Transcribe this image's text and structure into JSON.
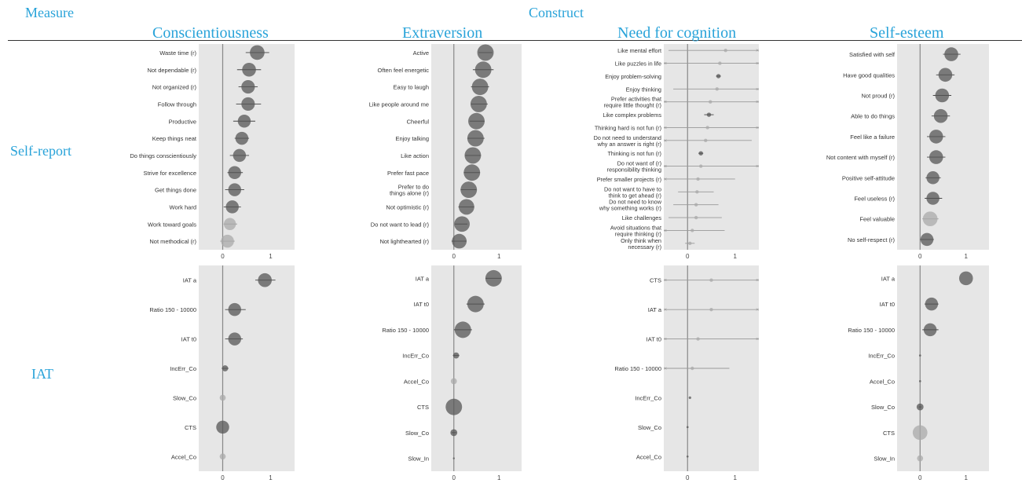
{
  "headers": {
    "measure": "Measure",
    "construct": "Construct",
    "columns": [
      "Conscientiousness",
      "Extraversion",
      "Need for cognition",
      "Self-esteem"
    ],
    "rows": [
      "Self-report",
      "IAT"
    ]
  },
  "chart_data": {
    "type": "scatter",
    "style": "forest-plot with point size and color intensity encoding magnitude, horizontal lines showing intervals",
    "xlim": [
      -0.5,
      1.5
    ],
    "xticks": [
      "0",
      "1"
    ],
    "colors": {
      "panel": "#e6e6e6",
      "zero_line": "#888888",
      "point_dark": "#555555",
      "point_light": "#aaaaaa",
      "interval": "#444444"
    },
    "panels": [
      {
        "construct": "Conscientiousness",
        "measure": "Self-report",
        "items": [
          {
            "label": "Waste time (r)",
            "value": 0.72,
            "lo": 0.48,
            "hi": 0.97,
            "size": 0.85
          },
          {
            "label": "Not dependable (r)",
            "value": 0.55,
            "lo": 0.3,
            "hi": 0.8,
            "size": 0.8
          },
          {
            "label": "Not organized (r)",
            "value": 0.53,
            "lo": 0.33,
            "hi": 0.73,
            "size": 0.78
          },
          {
            "label": "Follow through",
            "value": 0.53,
            "lo": 0.28,
            "hi": 0.8,
            "size": 0.78
          },
          {
            "label": "Productive",
            "value": 0.45,
            "lo": 0.22,
            "hi": 0.68,
            "size": 0.75
          },
          {
            "label": "Keep things neat",
            "value": 0.4,
            "lo": 0.25,
            "hi": 0.55,
            "size": 0.75
          },
          {
            "label": "Do things conscientiously",
            "value": 0.35,
            "lo": 0.15,
            "hi": 0.55,
            "size": 0.75
          },
          {
            "label": "Strive for excellence",
            "value": 0.25,
            "lo": 0.1,
            "hi": 0.42,
            "size": 0.75
          },
          {
            "label": "Get things done",
            "value": 0.25,
            "lo": 0.05,
            "hi": 0.45,
            "size": 0.75
          },
          {
            "label": "Work hard",
            "value": 0.2,
            "lo": 0.02,
            "hi": 0.38,
            "size": 0.75
          },
          {
            "label": "Work toward goals",
            "value": 0.15,
            "lo": 0.02,
            "hi": 0.3,
            "size": 0.7,
            "light": true
          },
          {
            "label": "Not methodical (r)",
            "value": 0.1,
            "lo": -0.05,
            "hi": 0.25,
            "size": 0.75,
            "light": true
          }
        ]
      },
      {
        "construct": "Extraversion",
        "measure": "Self-report",
        "items": [
          {
            "label": "Active",
            "value": 0.7,
            "lo": 0.55,
            "hi": 0.85,
            "size": 0.95
          },
          {
            "label": "Often feel energetic",
            "value": 0.65,
            "lo": 0.42,
            "hi": 0.88,
            "size": 0.95
          },
          {
            "label": "Easy to laugh",
            "value": 0.58,
            "lo": 0.38,
            "hi": 0.78,
            "size": 0.95
          },
          {
            "label": "Like people around me",
            "value": 0.55,
            "lo": 0.38,
            "hi": 0.75,
            "size": 0.95
          },
          {
            "label": "Cheerful",
            "value": 0.5,
            "lo": 0.35,
            "hi": 0.68,
            "size": 0.95
          },
          {
            "label": "Enjoy talking",
            "value": 0.48,
            "lo": 0.3,
            "hi": 0.68,
            "size": 0.95
          },
          {
            "label": "Like action",
            "value": 0.42,
            "lo": 0.25,
            "hi": 0.6,
            "size": 0.95
          },
          {
            "label": "Prefer fast pace",
            "value": 0.4,
            "lo": 0.22,
            "hi": 0.58,
            "size": 0.95
          },
          {
            "label": "Prefer to do things alone (r)",
            "value": 0.33,
            "lo": 0.15,
            "hi": 0.5,
            "size": 0.95
          },
          {
            "label": "Not optimistic (r)",
            "value": 0.28,
            "lo": 0.1,
            "hi": 0.45,
            "size": 0.9
          },
          {
            "label": "Do not want to lead (r)",
            "value": 0.18,
            "lo": 0.02,
            "hi": 0.3,
            "size": 0.9
          },
          {
            "label": "Not lighthearted (r)",
            "value": 0.12,
            "lo": -0.05,
            "hi": 0.28,
            "size": 0.85
          }
        ]
      },
      {
        "construct": "Need for cognition",
        "measure": "Self-report",
        "items": [
          {
            "label": "Like mental effort",
            "value": 0.8,
            "lo": -0.4,
            "hi": 1.5,
            "size": 0.2,
            "light": true
          },
          {
            "label": "Like puzzles in life",
            "value": 0.68,
            "lo": -0.5,
            "hi": 1.5,
            "size": 0.2,
            "light": true
          },
          {
            "label": "Enjoy problem-solving",
            "value": 0.65,
            "lo": 0.6,
            "hi": 0.7,
            "size": 0.25
          },
          {
            "label": "Enjoy thinking",
            "value": 0.62,
            "lo": -0.3,
            "hi": 1.5,
            "size": 0.2,
            "light": true
          },
          {
            "label": "Prefer activities that require little thought (r)",
            "value": 0.48,
            "lo": -0.5,
            "hi": 1.5,
            "size": 0.2,
            "light": true
          },
          {
            "label": "Like complex problems",
            "value": 0.45,
            "lo": 0.35,
            "hi": 0.55,
            "size": 0.25
          },
          {
            "label": "Thinking hard is not fun (r)",
            "value": 0.42,
            "lo": -0.5,
            "hi": 1.5,
            "size": 0.2,
            "light": true
          },
          {
            "label": "Do not need to understand why an answer is right (r)",
            "value": 0.38,
            "lo": -0.5,
            "hi": 1.35,
            "size": 0.2,
            "light": true
          },
          {
            "label": "Thinking is not fun (r)",
            "value": 0.28,
            "lo": 0.23,
            "hi": 0.33,
            "size": 0.25
          },
          {
            "label": "Do not want responsibility of thinking (r)",
            "value": 0.28,
            "lo": -0.5,
            "hi": 1.5,
            "size": 0.2,
            "light": true
          },
          {
            "label": "Prefer smaller projects (r)",
            "value": 0.22,
            "lo": -0.5,
            "hi": 1.0,
            "size": 0.2,
            "light": true
          },
          {
            "label": "Do not want to have to think to get ahead (r)",
            "value": 0.2,
            "lo": -0.2,
            "hi": 0.55,
            "size": 0.2,
            "light": true
          },
          {
            "label": "Do not need to know why something works (r)",
            "value": 0.18,
            "lo": -0.3,
            "hi": 0.65,
            "size": 0.2,
            "light": true
          },
          {
            "label": "Like challenges",
            "value": 0.18,
            "lo": -0.4,
            "hi": 0.72,
            "size": 0.2,
            "light": true
          },
          {
            "label": "Avoid situations that require thinking (r)",
            "value": 0.1,
            "lo": -0.5,
            "hi": 0.78,
            "size": 0.2,
            "light": true
          },
          {
            "label": "Only think when necessary (r)",
            "value": 0.05,
            "lo": -0.05,
            "hi": 0.15,
            "size": 0.2,
            "light": true
          }
        ]
      },
      {
        "construct": "Self-esteem",
        "measure": "Self-report",
        "items": [
          {
            "label": "Satisfied with self",
            "value": 0.68,
            "lo": 0.5,
            "hi": 0.88,
            "size": 0.8
          },
          {
            "label": "Have good qualities",
            "value": 0.55,
            "lo": 0.35,
            "hi": 0.75,
            "size": 0.8
          },
          {
            "label": "Not proud (r)",
            "value": 0.48,
            "lo": 0.28,
            "hi": 0.68,
            "size": 0.8
          },
          {
            "label": "Able to do things",
            "value": 0.45,
            "lo": 0.25,
            "hi": 0.65,
            "size": 0.8
          },
          {
            "label": "Feel like a failure",
            "value": 0.35,
            "lo": 0.15,
            "hi": 0.55,
            "size": 0.8
          },
          {
            "label": "Not content with myself (r)",
            "value": 0.35,
            "lo": 0.15,
            "hi": 0.55,
            "size": 0.8
          },
          {
            "label": "Positive self-attitude",
            "value": 0.28,
            "lo": 0.12,
            "hi": 0.45,
            "size": 0.75
          },
          {
            "label": "Feel useless (r)",
            "value": 0.28,
            "lo": 0.1,
            "hi": 0.48,
            "size": 0.75
          },
          {
            "label": "Feel valuable",
            "value": 0.22,
            "lo": 0.05,
            "hi": 0.4,
            "size": 0.85,
            "light": true
          },
          {
            "label": "No self-respect (r)",
            "value": 0.15,
            "lo": 0.0,
            "hi": 0.3,
            "size": 0.75
          }
        ]
      },
      {
        "construct": "Conscientiousness",
        "measure": "IAT",
        "items": [
          {
            "label": "IAT a",
            "value": 0.88,
            "lo": 0.68,
            "hi": 1.1,
            "size": 0.8
          },
          {
            "label": "Ratio 150 - 10000",
            "value": 0.25,
            "lo": 0.05,
            "hi": 0.48,
            "size": 0.75
          },
          {
            "label": "IAT t0",
            "value": 0.25,
            "lo": 0.05,
            "hi": 0.42,
            "size": 0.75
          },
          {
            "label": "IncErr_Co",
            "value": 0.05,
            "lo": -0.02,
            "hi": 0.12,
            "size": 0.35
          },
          {
            "label": "Slow_Co",
            "value": 0.0,
            "lo": 0.0,
            "hi": 0.0,
            "size": 0.35,
            "light": true
          },
          {
            "label": "CTS",
            "value": 0.0,
            "lo": 0.0,
            "hi": 0.0,
            "size": 0.75
          },
          {
            "label": "Accel_Co",
            "value": 0.0,
            "lo": 0.0,
            "hi": 0.0,
            "size": 0.35,
            "light": true
          }
        ]
      },
      {
        "construct": "Extraversion",
        "measure": "IAT",
        "items": [
          {
            "label": "IAT a",
            "value": 0.88,
            "lo": 0.7,
            "hi": 1.05,
            "size": 0.95
          },
          {
            "label": "IAT t0",
            "value": 0.48,
            "lo": 0.28,
            "hi": 0.68,
            "size": 0.95
          },
          {
            "label": "Ratio 150 - 10000",
            "value": 0.2,
            "lo": 0.0,
            "hi": 0.4,
            "size": 0.95
          },
          {
            "label": "IncErr_Co",
            "value": 0.05,
            "lo": -0.02,
            "hi": 0.12,
            "size": 0.35
          },
          {
            "label": "Accel_Co",
            "value": 0.0,
            "lo": 0.0,
            "hi": 0.0,
            "size": 0.35,
            "light": true
          },
          {
            "label": "CTS",
            "value": 0.0,
            "lo": 0.0,
            "hi": 0.0,
            "size": 0.95
          },
          {
            "label": "Slow_Co",
            "value": 0.0,
            "lo": -0.05,
            "hi": 0.05,
            "size": 0.4
          },
          {
            "label": "Slow_In",
            "value": 0.0,
            "lo": 0.0,
            "hi": 0.0,
            "size": 0.1
          }
        ]
      },
      {
        "construct": "Need for cognition",
        "measure": "IAT",
        "items": [
          {
            "label": "CTS",
            "value": 0.5,
            "lo": -0.5,
            "hi": 1.5,
            "size": 0.2,
            "light": true
          },
          {
            "label": "IAT a",
            "value": 0.5,
            "lo": -0.5,
            "hi": 1.5,
            "size": 0.2,
            "light": true
          },
          {
            "label": "IAT t0",
            "value": 0.22,
            "lo": -0.5,
            "hi": 1.5,
            "size": 0.2,
            "light": true
          },
          {
            "label": "Ratio 150 - 10000",
            "value": 0.1,
            "lo": -0.5,
            "hi": 0.88,
            "size": 0.2,
            "light": true
          },
          {
            "label": "IncErr_Co",
            "value": 0.05,
            "lo": 0.05,
            "hi": 0.05,
            "size": 0.15
          },
          {
            "label": "Slow_Co",
            "value": 0.0,
            "lo": 0.0,
            "hi": 0.0,
            "size": 0.12
          },
          {
            "label": "Accel_Co",
            "value": 0.0,
            "lo": 0.0,
            "hi": 0.0,
            "size": 0.12
          }
        ]
      },
      {
        "construct": "Self-esteem",
        "measure": "IAT",
        "items": [
          {
            "label": "IAT a",
            "value": 1.0,
            "lo": 1.0,
            "hi": 1.0,
            "size": 0.8
          },
          {
            "label": "IAT t0",
            "value": 0.25,
            "lo": 0.1,
            "hi": 0.4,
            "size": 0.75
          },
          {
            "label": "Ratio 150 - 10000",
            "value": 0.22,
            "lo": 0.05,
            "hi": 0.4,
            "size": 0.75
          },
          {
            "label": "IncErr_Co",
            "value": 0.0,
            "lo": 0.0,
            "hi": 0.0,
            "size": 0.12
          },
          {
            "label": "Accel_Co",
            "value": 0.0,
            "lo": 0.0,
            "hi": 0.0,
            "size": 0.12
          },
          {
            "label": "Slow_Co",
            "value": 0.0,
            "lo": -0.03,
            "hi": 0.03,
            "size": 0.4
          },
          {
            "label": "CTS",
            "value": 0.0,
            "lo": 0.0,
            "hi": 0.0,
            "size": 0.85,
            "light": true
          },
          {
            "label": "Slow_In",
            "value": 0.0,
            "lo": 0.0,
            "hi": 0.0,
            "size": 0.35,
            "light": true
          }
        ]
      }
    ]
  }
}
